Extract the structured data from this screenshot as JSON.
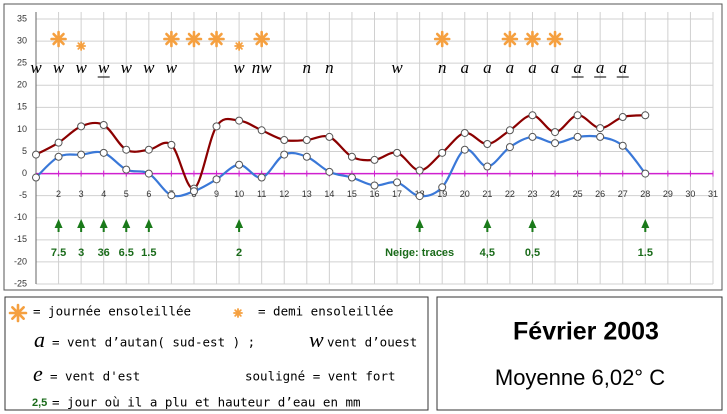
{
  "chart_data": {
    "type": "line",
    "xlim": [
      1,
      31
    ],
    "xticks": [
      2,
      3,
      4,
      5,
      6,
      7,
      8,
      9,
      10,
      11,
      12,
      13,
      14,
      15,
      16,
      17,
      18,
      19,
      20,
      21,
      22,
      23,
      24,
      25,
      26,
      27,
      28,
      29,
      30,
      31
    ],
    "ylim": [
      -25,
      35
    ],
    "yticks": [
      -25,
      -20,
      -15,
      -10,
      -5,
      0,
      5,
      10,
      15,
      20,
      25,
      30,
      35
    ],
    "grid": true,
    "x": [
      1,
      2,
      3,
      4,
      5,
      6,
      7,
      8,
      9,
      10,
      11,
      12,
      13,
      14,
      15,
      16,
      17,
      18,
      19,
      20,
      21,
      22,
      23,
      24,
      25,
      26,
      27,
      28
    ],
    "series": [
      {
        "name": "max",
        "color": "#8b0000",
        "values": [
          4.3,
          7,
          10.7,
          11,
          5.4,
          5.4,
          6.5,
          -3.4,
          10.7,
          12,
          9.8,
          7.6,
          7.6,
          8.3,
          3.8,
          3.1,
          4.7,
          0.7,
          4.7,
          9.2,
          6.7,
          9.8,
          13.2,
          9.4,
          13.2,
          10.3,
          12.8,
          13.2
        ]
      },
      {
        "name": "min",
        "color": "#3a78d8",
        "values": [
          -0.9,
          3.8,
          4.3,
          4.7,
          0.9,
          0,
          -4.9,
          -4,
          -1.3,
          2,
          -0.9,
          4.3,
          3.8,
          0.4,
          -0.9,
          -2.7,
          -2,
          -5.1,
          -3.1,
          5.4,
          1.6,
          6,
          8.3,
          6.9,
          8.3,
          8.3,
          6.3,
          0
        ]
      }
    ],
    "sun_days": [
      2,
      7,
      8,
      9,
      11,
      19,
      22,
      23,
      24
    ],
    "half_sun_days": [
      3,
      10
    ],
    "sun_color": "#f5a040",
    "wind": [
      {
        "day": 1,
        "letter": "w"
      },
      {
        "day": 2,
        "letter": "w"
      },
      {
        "day": 3,
        "letter": "w"
      },
      {
        "day": 4,
        "letter": "w",
        "strong": true
      },
      {
        "day": 5,
        "letter": "w"
      },
      {
        "day": 6,
        "letter": "w"
      },
      {
        "day": 7,
        "letter": "w"
      },
      {
        "day": 10,
        "letter": "w"
      },
      {
        "day": 11,
        "letter": "nw"
      },
      {
        "day": 13,
        "letter": "n"
      },
      {
        "day": 14,
        "letter": "n"
      },
      {
        "day": 17,
        "letter": "w"
      },
      {
        "day": 19,
        "letter": "n"
      },
      {
        "day": 20,
        "letter": "a"
      },
      {
        "day": 21,
        "letter": "a"
      },
      {
        "day": 22,
        "letter": "a"
      },
      {
        "day": 23,
        "letter": "a"
      },
      {
        "day": 24,
        "letter": "a"
      },
      {
        "day": 25,
        "letter": "a",
        "strong": true
      },
      {
        "day": 26,
        "letter": "a",
        "strong": true
      },
      {
        "day": 27,
        "letter": "a",
        "strong": true
      }
    ],
    "rain": [
      {
        "day": 2,
        "label": "7.5"
      },
      {
        "day": 3,
        "label": "3"
      },
      {
        "day": 4,
        "label": "36"
      },
      {
        "day": 5,
        "label": "6.5"
      },
      {
        "day": 6,
        "label": "1.5"
      },
      {
        "day": 10,
        "label": "2"
      },
      {
        "day": 18,
        "label": "Neige: traces"
      },
      {
        "day": 21,
        "label": "4,5"
      },
      {
        "day": 23,
        "label": "0,5"
      },
      {
        "day": 28,
        "label": "1.5"
      }
    ],
    "rain_color": "#1a7a1a"
  },
  "legend": {
    "sun": "= journée ensoleillée",
    "half_sun": "= demi ensoleillée",
    "autan_symbol": "a",
    "autan": "= vent d’autan( sud-est ) ;",
    "ouest_symbol": "w",
    "ouest": "vent d’ouest",
    "est_symbol": "e",
    "est": "= vent d'est",
    "strong": "souligné = vent fort",
    "rain_symbol": "2,5",
    "rain": "= jour où il a plu et hauteur d’eau en mm"
  },
  "summary": {
    "month": "Février  2003",
    "mean": "Moyenne  6,02° C"
  }
}
